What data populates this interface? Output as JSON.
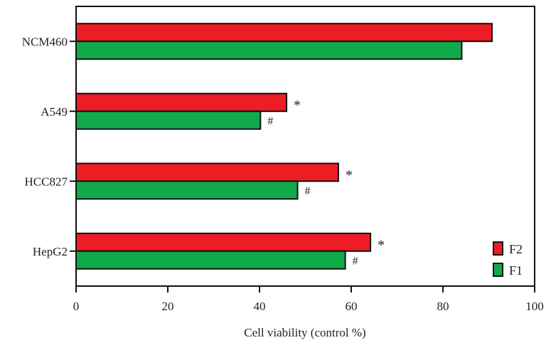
{
  "chart_data": {
    "type": "bar",
    "orientation": "horizontal",
    "categories": [
      "NCM460",
      "A549",
      "HCC827",
      "HepG2"
    ],
    "series": [
      {
        "name": "F2",
        "color": "#ee1c25",
        "values": [
          90.7,
          45.9,
          57.2,
          64.2
        ],
        "markers": [
          "",
          "*",
          "*",
          "*"
        ]
      },
      {
        "name": "F1",
        "color": "#10aa4a",
        "values": [
          84.1,
          40.2,
          48.3,
          58.7
        ],
        "markers": [
          "",
          "#",
          "#",
          "#"
        ]
      }
    ],
    "xlabel": "Cell viability (control %)",
    "ylabel": "",
    "xlim": [
      0,
      100
    ],
    "xticks": [
      0,
      20,
      40,
      60,
      80,
      100
    ],
    "grid": false,
    "legend_position": "bottom-right"
  }
}
